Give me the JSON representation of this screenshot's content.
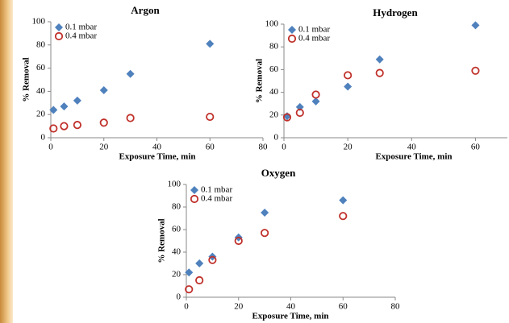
{
  "chart_data": [
    {
      "type": "scatter",
      "title": "Argon",
      "x_label": "Exposure Time, min",
      "y_label": "% Removal",
      "x": [
        1,
        5,
        10,
        20,
        30,
        60
      ],
      "series": [
        {
          "name": "0.1 mbar",
          "color": "#4f81bd",
          "marker": "diamond",
          "values": [
            24,
            27,
            32,
            41,
            55,
            81
          ]
        },
        {
          "name": "0.4 mbar",
          "color": "#c0302a",
          "marker": "circle",
          "values": [
            8,
            10,
            11,
            13,
            17,
            18
          ]
        }
      ],
      "xlim": [
        0,
        80
      ],
      "xticks": [
        0,
        20,
        40,
        60,
        80
      ],
      "ylim": [
        0,
        100
      ],
      "yticks": [
        0,
        20,
        40,
        60,
        80,
        100
      ]
    },
    {
      "type": "scatter",
      "title": "Hydrogen",
      "x_label": "Exposure Time, min",
      "y_label": "% Removal",
      "x": [
        1,
        5,
        10,
        20,
        30,
        60
      ],
      "series": [
        {
          "name": "0.1 mbar",
          "color": "#4f81bd",
          "marker": "diamond",
          "values": [
            19,
            27,
            32,
            45,
            69,
            99
          ]
        },
        {
          "name": "0.4 mbar",
          "color": "#c0302a",
          "marker": "circle",
          "values": [
            18,
            22,
            38,
            55,
            57,
            59
          ]
        }
      ],
      "xlim": [
        0,
        70
      ],
      "xticks": [
        0,
        20,
        40,
        60
      ],
      "ylim": [
        0,
        100
      ],
      "yticks": [
        0,
        20,
        40,
        60,
        80,
        100
      ]
    },
    {
      "type": "scatter",
      "title": "Oxygen",
      "x_label": "Exposure Time, min",
      "y_label": "% Removal",
      "x": [
        1,
        5,
        10,
        20,
        30,
        60
      ],
      "series": [
        {
          "name": "0.1 mbar",
          "color": "#4f81bd",
          "marker": "diamond",
          "values": [
            22,
            30,
            36,
            53,
            75,
            86
          ]
        },
        {
          "name": "0.4 mbar",
          "color": "#c0302a",
          "marker": "circle",
          "values": [
            7,
            15,
            33,
            50,
            57,
            72
          ]
        }
      ],
      "xlim": [
        0,
        80
      ],
      "xticks": [
        0,
        20,
        40,
        60,
        80
      ],
      "ylim": [
        0,
        100
      ],
      "yticks": [
        0,
        20,
        40,
        60,
        80,
        100
      ]
    }
  ]
}
